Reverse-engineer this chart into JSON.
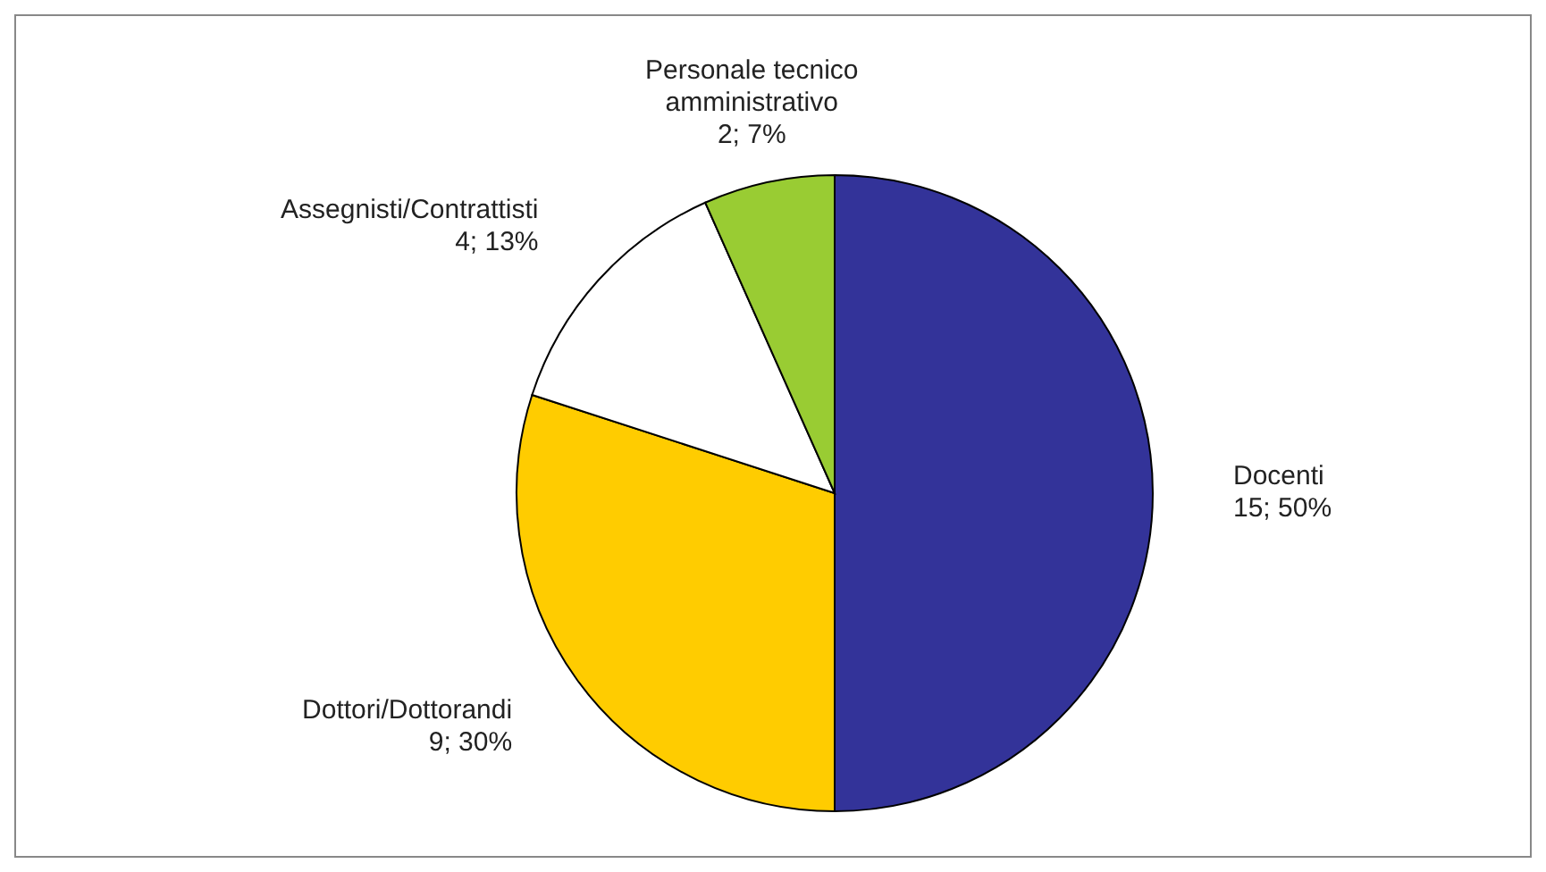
{
  "chart_data": {
    "type": "pie",
    "categories": [
      "Docenti",
      "Dottori/Dottorandi",
      "Assegnisti/Contrattisti",
      "Personale tecnico amministrativo"
    ],
    "values": [
      15,
      9,
      4,
      2
    ],
    "colors": [
      "#333399",
      "#ffcc00",
      "#ffffff",
      "#99cc33"
    ],
    "value_labels": [
      "15; 50%",
      "9; 30%",
      "4; 13%",
      "2; 7%"
    ]
  }
}
